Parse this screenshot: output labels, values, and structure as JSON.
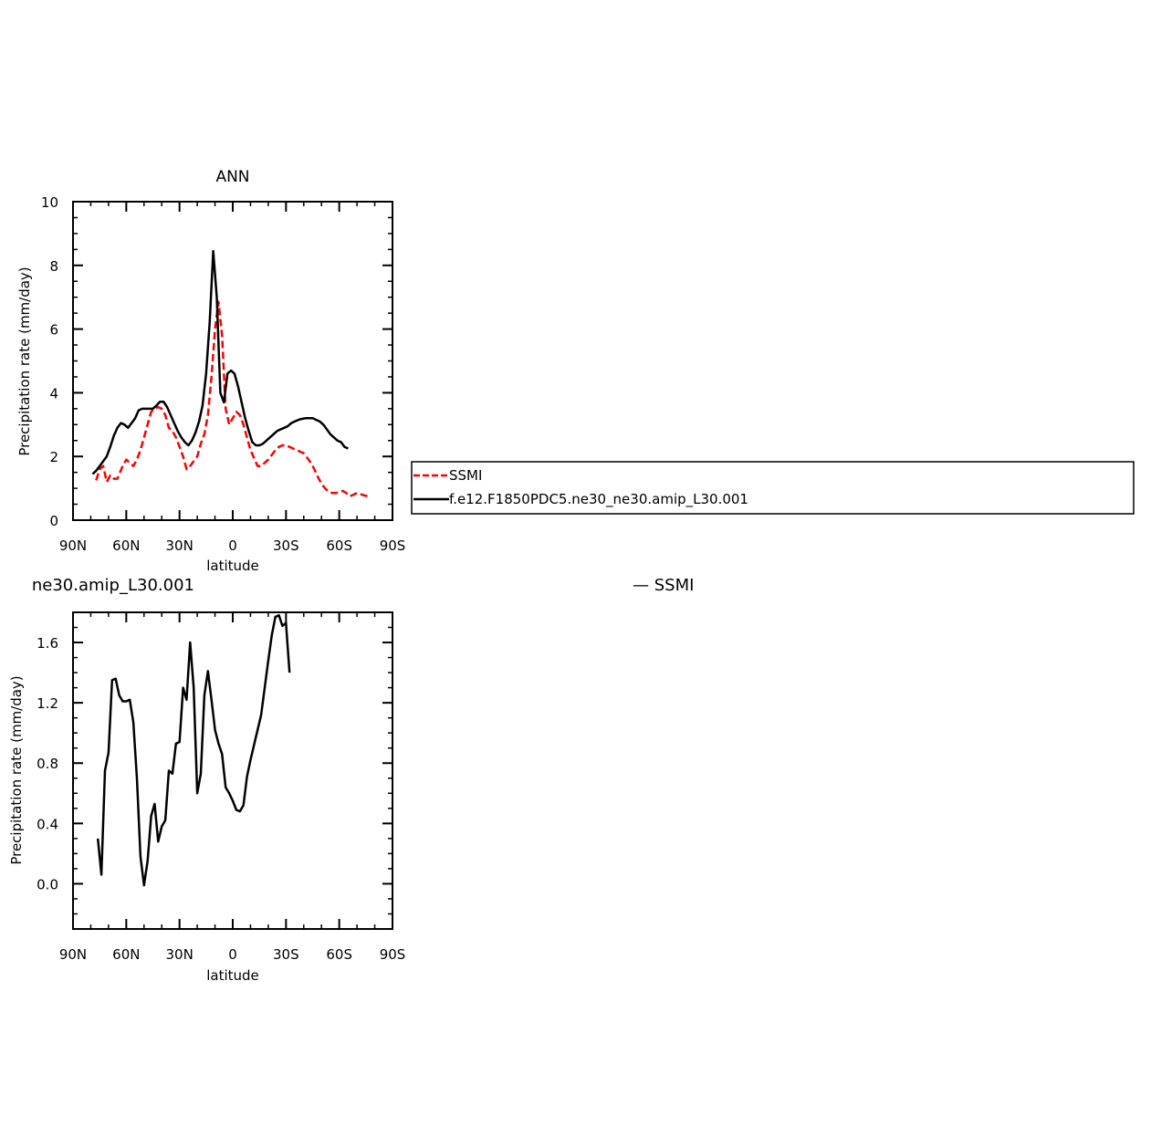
{
  "chart_data": [
    {
      "type": "line",
      "title": "ANN",
      "xlabel": "latitude",
      "ylabel": "Precipitation rate (mm/day)",
      "xlim": [
        90,
        -90
      ],
      "ylim": [
        0,
        10
      ],
      "x_ticks": [
        {
          "value": 90,
          "label": "90N"
        },
        {
          "value": 60,
          "label": "60N"
        },
        {
          "value": 30,
          "label": "30N"
        },
        {
          "value": 0,
          "label": "0"
        },
        {
          "value": -30,
          "label": "30S"
        },
        {
          "value": -60,
          "label": "60S"
        },
        {
          "value": -90,
          "label": "90S"
        }
      ],
      "y_ticks": [
        {
          "value": 0,
          "label": "0"
        },
        {
          "value": 2,
          "label": "2"
        },
        {
          "value": 4,
          "label": "4"
        },
        {
          "value": 6,
          "label": "6"
        },
        {
          "value": 8,
          "label": "8"
        },
        {
          "value": 10,
          "label": "10"
        }
      ],
      "grid": false,
      "legend_position": "right",
      "series": [
        {
          "name": "SSMI",
          "color": "#ff0000",
          "style": "dashed",
          "x": [
            77,
            75,
            73,
            71,
            69,
            67,
            65,
            62,
            60,
            58,
            56,
            54,
            52,
            50,
            48,
            46,
            44,
            42,
            40,
            38,
            36,
            34,
            32,
            30,
            28,
            26,
            24,
            22,
            20,
            18,
            16,
            14,
            12,
            10,
            8,
            6,
            4,
            2,
            0,
            -2,
            -4,
            -6,
            -8,
            -10,
            -12,
            -14,
            -16,
            -18,
            -20,
            -22,
            -24,
            -26,
            -28,
            -30,
            -32,
            -34,
            -36,
            -38,
            -40,
            -42,
            -44,
            -46,
            -48,
            -50,
            -52,
            -54,
            -56,
            -58,
            -60,
            -62,
            -64,
            -66,
            -68,
            -70,
            -72,
            -74,
            -76
          ],
          "y": [
            1.25,
            1.6,
            1.7,
            1.2,
            1.4,
            1.3,
            1.3,
            1.7,
            1.9,
            1.8,
            1.7,
            1.9,
            2.2,
            2.6,
            3.0,
            3.4,
            3.5,
            3.55,
            3.5,
            3.3,
            2.9,
            2.8,
            2.6,
            2.3,
            2.0,
            1.6,
            1.7,
            1.85,
            2.0,
            2.4,
            2.7,
            3.3,
            4.5,
            6.0,
            6.85,
            5.8,
            3.5,
            3.0,
            3.2,
            3.4,
            3.3,
            3.0,
            2.6,
            2.2,
            1.95,
            1.7,
            1.7,
            1.8,
            1.9,
            2.05,
            2.2,
            2.3,
            2.35,
            2.35,
            2.3,
            2.25,
            2.2,
            2.15,
            2.1,
            1.95,
            1.8,
            1.6,
            1.35,
            1.15,
            1.0,
            0.9,
            0.85,
            0.85,
            0.88,
            0.92,
            0.85,
            0.75,
            0.8,
            0.85,
            0.82,
            0.78,
            0.75
          ]
        },
        {
          "name": "f.e12.F1850PDC5.ne30_ne30.amip_L30.001",
          "color": "#000000",
          "style": "solid",
          "x": [
            79,
            77,
            75,
            73,
            71,
            69,
            67,
            65,
            63,
            61,
            59,
            57,
            55,
            53,
            51,
            49,
            47,
            45,
            43,
            41,
            39,
            37,
            35,
            33,
            31,
            29,
            27,
            25,
            23,
            21,
            19,
            17,
            15,
            13,
            11,
            9,
            7,
            5,
            3,
            1,
            -1,
            -3,
            -5,
            -7,
            -9,
            -11,
            -13,
            -15,
            -17,
            -19,
            -21,
            -23,
            -25,
            -27,
            -29,
            -31,
            -33,
            -35,
            -37,
            -39,
            -41,
            -43,
            -45,
            -47,
            -49,
            -51,
            -53,
            -55,
            -57,
            -59,
            -61,
            -63,
            -65
          ],
          "y": [
            1.45,
            1.55,
            1.7,
            1.85,
            2.0,
            2.3,
            2.65,
            2.9,
            3.05,
            3.0,
            2.9,
            3.05,
            3.2,
            3.45,
            3.5,
            3.5,
            3.5,
            3.5,
            3.6,
            3.72,
            3.72,
            3.55,
            3.3,
            3.05,
            2.8,
            2.6,
            2.45,
            2.35,
            2.5,
            2.75,
            3.1,
            3.6,
            4.6,
            6.2,
            8.45,
            7.0,
            4.0,
            3.7,
            4.6,
            4.7,
            4.6,
            4.2,
            3.7,
            3.2,
            2.8,
            2.45,
            2.35,
            2.35,
            2.4,
            2.5,
            2.6,
            2.7,
            2.8,
            2.85,
            2.9,
            2.95,
            3.05,
            3.1,
            3.15,
            3.18,
            3.2,
            3.2,
            3.2,
            3.15,
            3.1,
            3.0,
            2.85,
            2.7,
            2.6,
            2.5,
            2.45,
            2.3,
            2.25
          ]
        }
      ]
    },
    {
      "type": "line",
      "title": "ne30.amip_L30.001",
      "title_right": "— SSMI",
      "xlabel": "latitude",
      "ylabel": "Precipitation rate (mm/day)",
      "xlim": [
        90,
        -90
      ],
      "ylim": [
        -0.3,
        1.8
      ],
      "x_ticks": [
        {
          "value": 90,
          "label": "90N"
        },
        {
          "value": 60,
          "label": "60N"
        },
        {
          "value": 30,
          "label": "30N"
        },
        {
          "value": 0,
          "label": "0"
        },
        {
          "value": -30,
          "label": "30S"
        },
        {
          "value": -60,
          "label": "60S"
        },
        {
          "value": -90,
          "label": "90S"
        }
      ],
      "y_ticks": [
        {
          "value": 0.0,
          "label": "0.0"
        },
        {
          "value": 0.4,
          "label": "0.4"
        },
        {
          "value": 0.8,
          "label": "0.8"
        },
        {
          "value": 1.2,
          "label": "1.2"
        },
        {
          "value": 1.6,
          "label": "1.6"
        }
      ],
      "grid": false,
      "series": [
        {
          "name": "",
          "color": "#000000",
          "style": "solid",
          "x": [
            76,
            74,
            72,
            70,
            68,
            66,
            64,
            62,
            60,
            58,
            56,
            54,
            52,
            50,
            48,
            46,
            44,
            42,
            40,
            38,
            36,
            34,
            32,
            30,
            28,
            26,
            24,
            22,
            20,
            18,
            16,
            14,
            12,
            10,
            8,
            6,
            4,
            2,
            0,
            -2,
            -4,
            -6,
            -8,
            -10,
            -12,
            -14,
            -16,
            -18,
            -20,
            -22,
            -24,
            -26,
            -28,
            -30,
            -32,
            -34,
            -36,
            -38,
            -40,
            -42,
            -44,
            -46,
            -48,
            -50,
            -52,
            -54,
            -56,
            -58,
            -60,
            -62,
            -64,
            -66
          ],
          "y": [
            0.3,
            0.06,
            0.75,
            0.87,
            1.35,
            1.36,
            1.25,
            1.21,
            1.21,
            1.22,
            1.07,
            0.7,
            0.18,
            -0.01,
            0.15,
            0.45,
            0.53,
            0.28,
            0.38,
            0.42,
            0.75,
            0.73,
            0.93,
            0.94,
            1.3,
            1.22,
            1.6,
            1.3,
            0.6,
            0.73,
            1.25,
            1.41,
            1.22,
            1.02,
            0.93,
            0.86,
            0.64,
            0.6,
            0.55,
            0.49,
            0.48,
            0.52,
            0.71,
            0.82,
            0.92,
            1.02,
            1.12,
            1.3,
            1.48,
            1.65,
            1.77,
            1.78,
            1.71,
            1.73,
            1.4,
            null,
            null,
            null,
            null,
            null,
            null,
            null,
            null,
            null,
            null,
            null,
            null,
            null,
            null,
            null,
            null,
            null
          ]
        }
      ]
    }
  ]
}
